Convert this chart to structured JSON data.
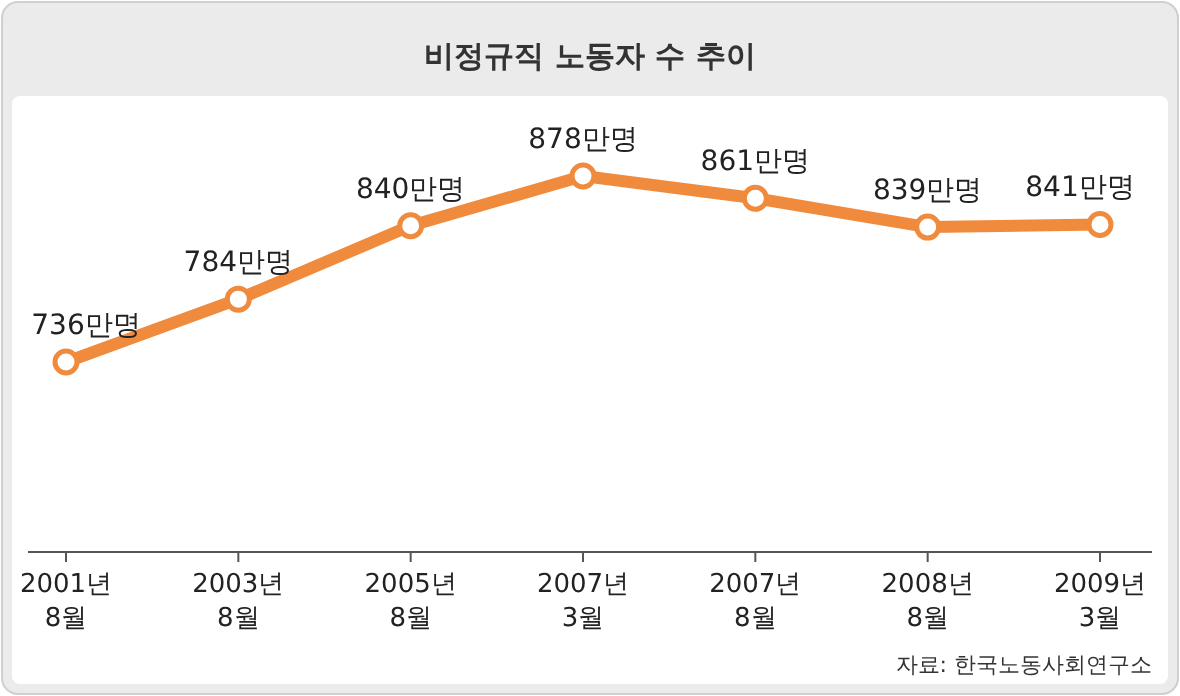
{
  "chart_data": {
    "type": "line",
    "title": "비정규직 노동자 수 추이",
    "categories": [
      "2001년\n8월",
      "2003년\n8월",
      "2005년\n8월",
      "2007년\n3월",
      "2007년\n8월",
      "2008년\n8월",
      "2009년\n3월"
    ],
    "color": "#f08a3c",
    "values": [
      736,
      784,
      840,
      878,
      861,
      839,
      841
    ],
    "value_labels": [
      "736만명",
      "784만명",
      "840만명",
      "878만명",
      "861만명",
      "839만명",
      "841만명"
    ],
    "marker": "circle",
    "annotations": [
      "자료: 한국노동사회연구소"
    ]
  }
}
